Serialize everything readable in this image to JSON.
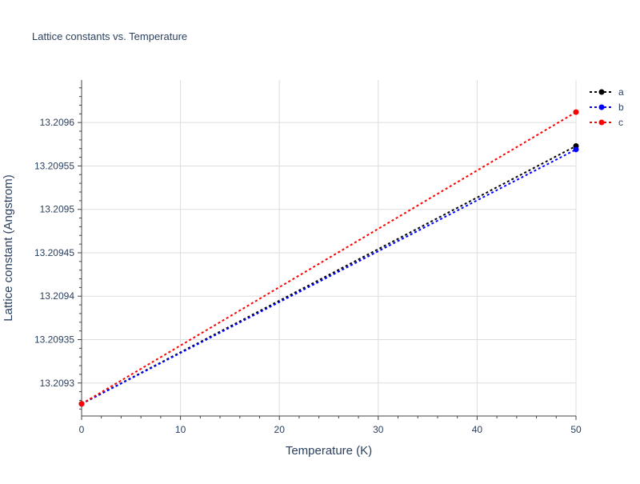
{
  "chart_data": {
    "type": "line",
    "title": "Lattice constants vs. Temperature",
    "xlabel": "Temperature (K)",
    "ylabel": "Lattice constant (Angstrom)",
    "xlim": [
      0,
      50
    ],
    "ylim": [
      13.209262,
      13.209649
    ],
    "x_ticks": [
      0,
      10,
      20,
      30,
      40,
      50
    ],
    "y_ticks": [
      13.2093,
      13.20935,
      13.2094,
      13.20945,
      13.2095,
      13.20955,
      13.2096
    ],
    "y_tick_labels": [
      "13.2093",
      "13.20935",
      "13.2094",
      "13.20945",
      "13.2095",
      "13.20955",
      "13.2096"
    ],
    "grid": true,
    "legend_position": "top-right",
    "x": [
      0,
      50
    ],
    "series": [
      {
        "name": "a",
        "color": "#000000",
        "values": [
          13.209276,
          13.209573
        ]
      },
      {
        "name": "b",
        "color": "#0000ff",
        "values": [
          13.209276,
          13.209569
        ]
      },
      {
        "name": "c",
        "color": "#ff0000",
        "values": [
          13.209276,
          13.209612
        ]
      }
    ]
  }
}
